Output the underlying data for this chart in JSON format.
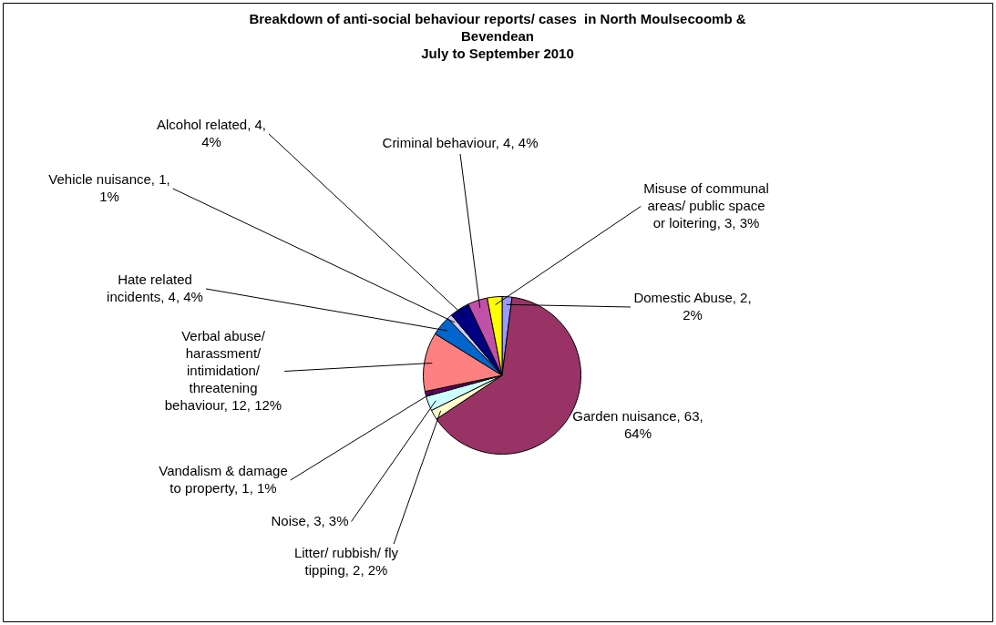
{
  "chart_data": {
    "type": "pie",
    "title": "Breakdown of anti-social behaviour reports/ cases  in North Moulsecoomb & Bevendean",
    "subtitle": "July to September 2010",
    "categories": [
      "Domestic Abuse",
      "Garden nuisance",
      "Litter/ rubbish/ fly tipping",
      "Noise",
      "Vandalism & damage to property",
      "Verbal abuse/ harassment/ intimidation/ threatening behaviour",
      "Hate related incidents",
      "Vehicle nuisance",
      "Alcohol related",
      "Criminal behaviour",
      "Misuse of communal areas/ public space or loitering"
    ],
    "values": [
      2,
      63,
      2,
      3,
      1,
      12,
      4,
      1,
      4,
      4,
      3
    ],
    "value_labels": [
      "2, 2%",
      "63, 64%",
      "2, 2%",
      "3, 3%",
      "1, 1%",
      "12, 12%",
      "4, 4%",
      "1, 1%",
      "4, 4%",
      "4, 4%",
      "3, 3%"
    ],
    "colors": [
      "#9999ff",
      "#993366",
      "#ffffcc",
      "#ccffff",
      "#660066",
      "#ff8080",
      "#0066cc",
      "#ccccff",
      "#000080",
      "#c050a8",
      "#ffff00"
    ],
    "legend": false
  }
}
